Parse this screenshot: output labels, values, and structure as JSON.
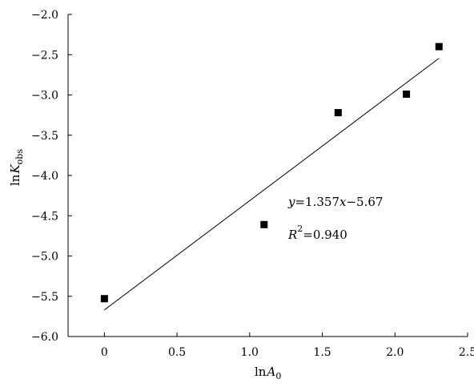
{
  "chart_data": {
    "type": "scatter",
    "title": "",
    "xlabel": {
      "main": "ln",
      "var": "A",
      "sub": "0"
    },
    "ylabel": {
      "main": "ln",
      "var": "K",
      "sub": "obs"
    },
    "xlim": [
      -0.25,
      2.5
    ],
    "ylim": [
      -6.0,
      -2.0
    ],
    "x_ticks": [
      0,
      0.5,
      1.0,
      1.5,
      2.0,
      2.5
    ],
    "x_tick_labels": [
      "0",
      "0.5",
      "1.0",
      "1.5",
      "2.0",
      "2.5"
    ],
    "y_ticks": [
      -2.0,
      -2.5,
      -3.0,
      -3.5,
      -4.0,
      -4.5,
      -5.0,
      -5.5,
      -6.0
    ],
    "y_tick_labels": [
      "−2.0",
      "−2.5",
      "−3.0",
      "−3.5",
      "−4.0",
      "−4.5",
      "−5.0",
      "−5.5",
      "−6.0"
    ],
    "grid": false,
    "series": [
      {
        "points": [
          {
            "x": 0.0,
            "y": -5.53
          },
          {
            "x": 1.099,
            "y": -4.61
          },
          {
            "x": 1.609,
            "y": -3.22
          },
          {
            "x": 2.079,
            "y": -2.99
          },
          {
            "x": 2.303,
            "y": -2.4
          }
        ]
      }
    ],
    "fit_line": {
      "slope": 1.357,
      "intercept": -5.67,
      "x_range": [
        0.0,
        2.303
      ]
    },
    "annotations": {
      "equation": {
        "y": "y",
        "rest": "=1.357",
        "x": "x",
        "tail": "−5.67"
      },
      "r2": {
        "r": "R",
        "sup": "2",
        "rest": "=0.940"
      }
    }
  }
}
